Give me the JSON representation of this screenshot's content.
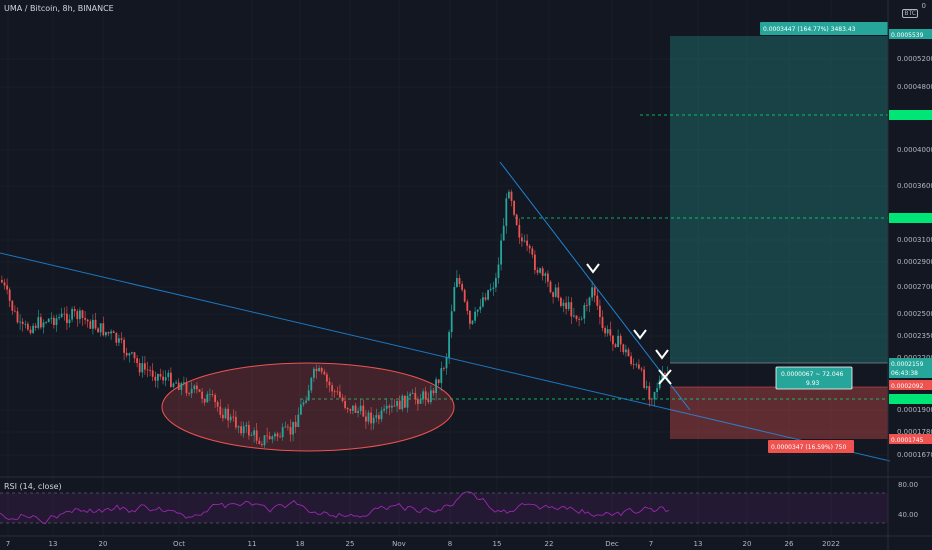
{
  "header": {
    "title": "UMA / Bitcoin, 8h, BINANCE"
  },
  "corner_label": "0",
  "currency_badge": "BTC",
  "rsi": {
    "label": "RSI (14, close)",
    "levels": [
      "80.00",
      "40.00"
    ]
  },
  "colors": {
    "bg": "#131722",
    "grid": "#1e222d",
    "up": "#26a69a",
    "down": "#ef5350",
    "profit": "#26a69a",
    "loss": "#ef5350",
    "trend": "#2196f3",
    "rsi": "#9c27b0",
    "green_level": "#00e676"
  },
  "position": {
    "target_label": "0.0003447 (164.77%) 3483.43",
    "stop_label": "0.0000347 (16.59%) 750",
    "info_line1": "0.0000067 ~ 72.046",
    "info_line2": "9.93"
  },
  "price_axis": {
    "ticks": [
      "0.0005200",
      "0.0004800",
      "0.0004000",
      "0.0003600",
      "0.0003100",
      "0.0002900",
      "0.0002700",
      "0.0002500",
      "0.0002350",
      "0.0002200",
      "0.0001900",
      "0.0001780",
      "0.0001670"
    ],
    "labels": {
      "target": "0.0005539",
      "entry": "0.0002159",
      "countdown": "06:43:38",
      "current": "0.0002092",
      "stop": "0.0001745"
    }
  },
  "chart_data": {
    "type": "candlestick",
    "title": "UMA / Bitcoin, 8h, BINANCE",
    "x_ticks": [
      "7",
      "13",
      "20",
      "Oct",
      "11",
      "18",
      "25",
      "Nov",
      "8",
      "15",
      "22",
      "Dec",
      "7",
      "13",
      "20",
      "26",
      "2022"
    ],
    "trend_description": "Sideways 0.00020-0.00023 through Sep-Oct, spike in early Nov to ~0.00036, then descending to ~0.00021 in Dec",
    "key_prices": {
      "target": 0.0005539,
      "entry": 0.0002159,
      "current": 0.0002092,
      "stop": 0.0001745
    },
    "ylim": [
      0.00016,
      0.00058
    ]
  }
}
